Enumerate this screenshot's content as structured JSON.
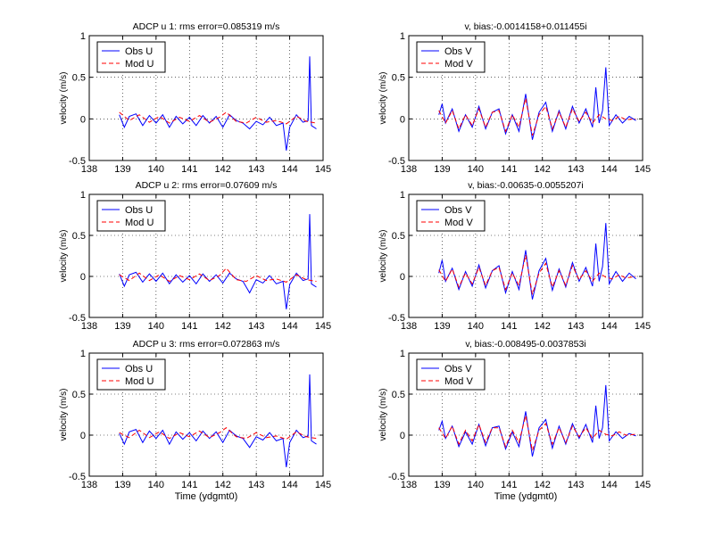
{
  "chart_data": [
    {
      "type": "line",
      "title": "ADCP u 1: rms error=0.085319 m/s",
      "xlabel": "",
      "ylabel": "velocity (m/s)",
      "xlim": [
        138,
        145
      ],
      "ylim": [
        -0.5,
        1
      ],
      "xticks": [
        "138",
        "139",
        "140",
        "141",
        "142",
        "143",
        "144",
        "145"
      ],
      "yticks": [
        "-0.5",
        "0",
        "0.5",
        "1"
      ],
      "grid": true,
      "legend_position": "top-left",
      "series": [
        {
          "name": "Obs U",
          "color": "#0000ff",
          "style": "solid",
          "x": [
            138.9,
            139.05,
            139.2,
            139.4,
            139.6,
            139.8,
            140.0,
            140.2,
            140.4,
            140.6,
            140.8,
            141.0,
            141.2,
            141.4,
            141.6,
            141.8,
            142.0,
            142.2,
            142.4,
            142.6,
            142.8,
            143.0,
            143.2,
            143.4,
            143.6,
            143.8,
            143.9,
            144.0,
            144.2,
            144.4,
            144.55,
            144.6,
            144.65,
            144.8
          ],
          "y": [
            0.05,
            -0.1,
            0.03,
            0.06,
            -0.08,
            0.04,
            -0.05,
            0.05,
            -0.1,
            0.03,
            -0.06,
            0.02,
            -0.08,
            0.04,
            -0.05,
            0.03,
            -0.1,
            0.05,
            -0.02,
            -0.05,
            -0.12,
            -0.03,
            -0.07,
            0.02,
            -0.08,
            -0.05,
            -0.38,
            -0.1,
            0.05,
            -0.04,
            -0.02,
            0.75,
            -0.08,
            -0.12
          ]
        },
        {
          "name": "Mod U",
          "color": "#ff0000",
          "style": "dashed",
          "x": [
            138.9,
            139.2,
            139.5,
            139.8,
            140.1,
            140.4,
            140.7,
            141.0,
            141.3,
            141.6,
            141.9,
            142.1,
            142.4,
            142.7,
            143.0,
            143.3,
            143.6,
            143.9,
            144.2,
            144.5,
            144.8
          ],
          "y": [
            0.08,
            -0.02,
            0.05,
            -0.04,
            0.03,
            -0.05,
            0.02,
            -0.03,
            0.04,
            -0.04,
            0.02,
            0.08,
            -0.03,
            -0.05,
            0.02,
            -0.04,
            -0.02,
            -0.06,
            0.03,
            -0.03,
            -0.05
          ]
        }
      ]
    },
    {
      "type": "line",
      "title": "v, bias:-0.0014158+0.011455i",
      "xlabel": "",
      "ylabel": "velocity (m/s)",
      "xlim": [
        138,
        145
      ],
      "ylim": [
        -0.5,
        1
      ],
      "xticks": [
        "138",
        "139",
        "140",
        "141",
        "142",
        "143",
        "144",
        "145"
      ],
      "yticks": [
        "-0.5",
        "0",
        "0.5",
        "1"
      ],
      "grid": true,
      "legend_position": "top-left",
      "series": [
        {
          "name": "Obs V",
          "color": "#0000ff",
          "style": "solid",
          "x": [
            138.9,
            139.0,
            139.1,
            139.3,
            139.5,
            139.7,
            139.9,
            140.1,
            140.3,
            140.5,
            140.7,
            140.9,
            141.1,
            141.3,
            141.5,
            141.7,
            141.9,
            142.1,
            142.3,
            142.5,
            142.7,
            142.9,
            143.1,
            143.3,
            143.5,
            143.6,
            143.7,
            143.8,
            143.9,
            144.0,
            144.2,
            144.4,
            144.6,
            144.8
          ],
          "y": [
            0.05,
            0.18,
            -0.05,
            0.12,
            -0.15,
            0.05,
            -0.1,
            0.15,
            -0.12,
            0.08,
            0.12,
            -0.18,
            0.05,
            -0.15,
            0.3,
            -0.25,
            0.08,
            0.2,
            -0.15,
            0.1,
            -0.12,
            0.15,
            -0.05,
            0.12,
            -0.1,
            0.38,
            -0.05,
            0.1,
            0.62,
            -0.08,
            0.05,
            -0.05,
            0.03,
            -0.02
          ]
        },
        {
          "name": "Mod V",
          "color": "#ff0000",
          "style": "dashed",
          "x": [
            138.9,
            139.1,
            139.3,
            139.5,
            139.7,
            139.9,
            140.1,
            140.3,
            140.5,
            140.7,
            140.9,
            141.1,
            141.3,
            141.5,
            141.7,
            141.9,
            142.1,
            142.3,
            142.5,
            142.7,
            142.9,
            143.1,
            143.3,
            143.5,
            143.7,
            143.9,
            144.1,
            144.3,
            144.5,
            144.8
          ],
          "y": [
            0.1,
            -0.05,
            0.1,
            -0.12,
            0.05,
            -0.08,
            0.12,
            -0.1,
            0.08,
            0.1,
            -0.15,
            0.05,
            -0.1,
            0.25,
            -0.2,
            0.05,
            0.15,
            -0.12,
            0.08,
            -0.1,
            0.12,
            -0.03,
            0.08,
            -0.05,
            0.05,
            0.0,
            -0.02,
            0.03,
            -0.01,
            0.0
          ]
        }
      ]
    },
    {
      "type": "line",
      "title": "ADCP u 2: rms error=0.07609 m/s",
      "xlabel": "",
      "ylabel": "velocity (m/s)",
      "xlim": [
        138,
        145
      ],
      "ylim": [
        -0.5,
        1
      ],
      "xticks": [
        "138",
        "139",
        "140",
        "141",
        "142",
        "143",
        "144",
        "145"
      ],
      "yticks": [
        "-0.5",
        "0",
        "0.5",
        "1"
      ],
      "grid": true,
      "legend_position": "top-left",
      "series": [
        {
          "name": "Obs U",
          "color": "#0000ff",
          "style": "solid",
          "x": [
            138.9,
            139.05,
            139.2,
            139.4,
            139.6,
            139.8,
            140.0,
            140.2,
            140.4,
            140.6,
            140.8,
            141.0,
            141.2,
            141.4,
            141.6,
            141.8,
            142.0,
            142.2,
            142.4,
            142.6,
            142.8,
            143.0,
            143.2,
            143.4,
            143.6,
            143.8,
            143.9,
            144.0,
            144.2,
            144.4,
            144.55,
            144.6,
            144.65,
            144.8
          ],
          "y": [
            0.03,
            -0.12,
            0.02,
            0.05,
            -0.07,
            0.03,
            -0.06,
            0.04,
            -0.09,
            0.02,
            -0.07,
            0.01,
            -0.09,
            0.03,
            -0.06,
            0.02,
            -0.08,
            0.04,
            -0.03,
            -0.06,
            -0.2,
            -0.04,
            -0.08,
            0.01,
            -0.09,
            -0.06,
            -0.4,
            -0.1,
            0.04,
            -0.05,
            -0.03,
            0.76,
            -0.09,
            -0.13
          ]
        },
        {
          "name": "Mod U",
          "color": "#ff0000",
          "style": "dashed",
          "x": [
            138.9,
            139.2,
            139.5,
            139.8,
            140.1,
            140.4,
            140.7,
            141.0,
            141.3,
            141.6,
            141.9,
            142.1,
            142.4,
            142.7,
            143.0,
            143.3,
            143.6,
            143.9,
            144.2,
            144.5,
            144.8
          ],
          "y": [
            0.02,
            -0.05,
            0.04,
            -0.05,
            0.02,
            -0.06,
            0.01,
            -0.04,
            0.03,
            -0.05,
            0.01,
            0.1,
            -0.04,
            -0.06,
            0.01,
            -0.05,
            -0.03,
            -0.07,
            0.02,
            -0.04,
            -0.06
          ]
        }
      ]
    },
    {
      "type": "line",
      "title": "v, bias:-0.00635-0.0055207i",
      "xlabel": "",
      "ylabel": "velocity (m/s)",
      "xlim": [
        138,
        145
      ],
      "ylim": [
        -0.5,
        1
      ],
      "xticks": [
        "138",
        "139",
        "140",
        "141",
        "142",
        "143",
        "144",
        "145"
      ],
      "yticks": [
        "-0.5",
        "0",
        "0.5",
        "1"
      ],
      "grid": true,
      "legend_position": "top-left",
      "series": [
        {
          "name": "Obs V",
          "color": "#0000ff",
          "style": "solid",
          "x": [
            138.9,
            139.0,
            139.1,
            139.3,
            139.5,
            139.7,
            139.9,
            140.1,
            140.3,
            140.5,
            140.7,
            140.9,
            141.1,
            141.3,
            141.5,
            141.7,
            141.9,
            142.1,
            142.3,
            142.5,
            142.7,
            142.9,
            143.1,
            143.3,
            143.5,
            143.6,
            143.7,
            143.8,
            143.9,
            144.0,
            144.2,
            144.4,
            144.6,
            144.8
          ],
          "y": [
            0.04,
            0.2,
            -0.06,
            0.1,
            -0.16,
            0.06,
            -0.12,
            0.14,
            -0.14,
            0.07,
            0.13,
            -0.2,
            0.06,
            -0.16,
            0.32,
            -0.28,
            0.07,
            0.22,
            -0.17,
            0.09,
            -0.13,
            0.17,
            -0.06,
            0.11,
            -0.12,
            0.4,
            -0.06,
            0.12,
            0.65,
            -0.09,
            0.06,
            -0.06,
            0.04,
            -0.03
          ]
        },
        {
          "name": "Mod V",
          "color": "#ff0000",
          "style": "dashed",
          "x": [
            138.9,
            139.1,
            139.3,
            139.5,
            139.7,
            139.9,
            140.1,
            140.3,
            140.5,
            140.7,
            140.9,
            141.1,
            141.3,
            141.5,
            141.7,
            141.9,
            142.1,
            142.3,
            142.5,
            142.7,
            142.9,
            143.1,
            143.3,
            143.5,
            143.7,
            143.9,
            144.1,
            144.3,
            144.5,
            144.8
          ],
          "y": [
            0.08,
            -0.06,
            0.09,
            -0.13,
            0.04,
            -0.09,
            0.11,
            -0.11,
            0.07,
            0.11,
            -0.16,
            0.04,
            -0.11,
            0.26,
            -0.22,
            0.04,
            0.16,
            -0.13,
            0.07,
            -0.11,
            0.13,
            -0.04,
            0.07,
            -0.06,
            0.04,
            -0.01,
            -0.03,
            0.02,
            -0.02,
            0.0
          ]
        }
      ]
    },
    {
      "type": "line",
      "title": "ADCP u 3: rms error=0.072863 m/s",
      "xlabel": "Time (ydgmt0)",
      "ylabel": "velocity (m/s)",
      "xlim": [
        138,
        145
      ],
      "ylim": [
        -0.5,
        1
      ],
      "xticks": [
        "138",
        "139",
        "140",
        "141",
        "142",
        "143",
        "144",
        "145"
      ],
      "yticks": [
        "-0.5",
        "0",
        "0.5",
        "1"
      ],
      "grid": true,
      "legend_position": "top-left",
      "series": [
        {
          "name": "Obs U",
          "color": "#0000ff",
          "style": "solid",
          "x": [
            138.9,
            139.05,
            139.2,
            139.4,
            139.6,
            139.8,
            140.0,
            140.2,
            140.4,
            140.6,
            140.8,
            141.0,
            141.2,
            141.4,
            141.6,
            141.8,
            142.0,
            142.2,
            142.4,
            142.6,
            142.8,
            143.0,
            143.2,
            143.4,
            143.6,
            143.8,
            143.9,
            144.0,
            144.2,
            144.4,
            144.55,
            144.6,
            144.65,
            144.8
          ],
          "y": [
            0.02,
            -0.11,
            0.04,
            0.07,
            -0.09,
            0.05,
            -0.04,
            0.06,
            -0.11,
            0.04,
            -0.05,
            0.03,
            -0.07,
            0.05,
            -0.04,
            0.04,
            -0.09,
            0.06,
            -0.01,
            -0.04,
            -0.15,
            -0.02,
            -0.06,
            0.03,
            -0.07,
            -0.04,
            -0.39,
            -0.09,
            0.06,
            -0.03,
            -0.01,
            0.74,
            -0.07,
            -0.11
          ]
        },
        {
          "name": "Mod U",
          "color": "#ff0000",
          "style": "dashed",
          "x": [
            138.9,
            139.2,
            139.5,
            139.8,
            140.1,
            140.4,
            140.7,
            141.0,
            141.3,
            141.6,
            141.9,
            142.1,
            142.4,
            142.7,
            143.0,
            143.3,
            143.6,
            143.9,
            144.2,
            144.5,
            144.8
          ],
          "y": [
            0.03,
            -0.03,
            0.06,
            -0.03,
            0.04,
            -0.04,
            0.03,
            -0.02,
            0.05,
            -0.03,
            0.03,
            0.09,
            -0.02,
            -0.04,
            0.03,
            -0.03,
            -0.01,
            -0.05,
            0.04,
            -0.02,
            -0.04
          ]
        }
      ]
    },
    {
      "type": "line",
      "title": "v, bias:-0.008495-0.0037853i",
      "xlabel": "Time (ydgmt0)",
      "ylabel": "velocity (m/s)",
      "xlim": [
        138,
        145
      ],
      "ylim": [
        -0.5,
        1
      ],
      "xticks": [
        "138",
        "139",
        "140",
        "141",
        "142",
        "143",
        "144",
        "145"
      ],
      "yticks": [
        "-0.5",
        "0",
        "0.5",
        "1"
      ],
      "grid": true,
      "legend_position": "top-left",
      "series": [
        {
          "name": "Obs V",
          "color": "#0000ff",
          "style": "solid",
          "x": [
            138.9,
            139.0,
            139.1,
            139.3,
            139.5,
            139.7,
            139.9,
            140.1,
            140.3,
            140.5,
            140.7,
            140.9,
            141.1,
            141.3,
            141.5,
            141.7,
            141.9,
            142.1,
            142.3,
            142.5,
            142.7,
            142.9,
            143.1,
            143.3,
            143.5,
            143.6,
            143.7,
            143.8,
            143.9,
            144.0,
            144.2,
            144.4,
            144.6,
            144.8
          ],
          "y": [
            0.06,
            0.17,
            -0.04,
            0.11,
            -0.14,
            0.04,
            -0.11,
            0.13,
            -0.13,
            0.09,
            0.11,
            -0.17,
            0.04,
            -0.14,
            0.29,
            -0.26,
            0.09,
            0.19,
            -0.16,
            0.11,
            -0.11,
            0.14,
            -0.04,
            0.13,
            -0.09,
            0.36,
            -0.04,
            0.09,
            0.61,
            -0.07,
            0.04,
            -0.04,
            0.02,
            -0.01
          ]
        },
        {
          "name": "Mod V",
          "color": "#ff0000",
          "style": "dashed",
          "x": [
            138.9,
            139.1,
            139.3,
            139.5,
            139.7,
            139.9,
            140.1,
            140.3,
            140.5,
            140.7,
            140.9,
            141.1,
            141.3,
            141.5,
            141.7,
            141.9,
            142.1,
            142.3,
            142.5,
            142.7,
            142.9,
            143.1,
            143.3,
            143.5,
            143.7,
            143.9,
            144.1,
            144.3,
            144.5,
            144.8
          ],
          "y": [
            0.09,
            -0.04,
            0.11,
            -0.11,
            0.06,
            -0.07,
            0.13,
            -0.09,
            0.09,
            0.09,
            -0.14,
            0.06,
            -0.09,
            0.24,
            -0.19,
            0.06,
            0.14,
            -0.11,
            0.09,
            -0.09,
            0.11,
            -0.02,
            0.09,
            -0.04,
            0.06,
            0.01,
            -0.01,
            0.04,
            0.0,
            0.01
          ]
        }
      ]
    }
  ]
}
